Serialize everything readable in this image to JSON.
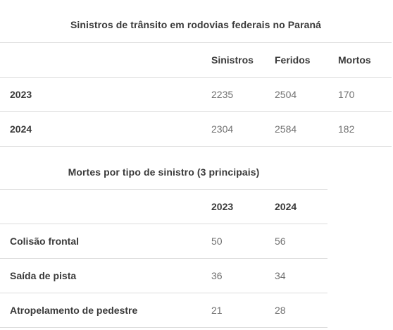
{
  "table1": {
    "caption": "Sinistros de trânsito em rodovias federais no Paraná",
    "headers": [
      "",
      "Sinistros",
      "Feridos",
      "Mortos"
    ],
    "rows": [
      {
        "label": "2023",
        "values": [
          "2235",
          "2504",
          "170"
        ]
      },
      {
        "label": "2024",
        "values": [
          "2304",
          "2584",
          "182"
        ]
      }
    ]
  },
  "table2": {
    "caption": "Mortes por tipo de sinistro (3 principais)",
    "headers": [
      "",
      "2023",
      "2024"
    ],
    "rows": [
      {
        "label": "Colisão frontal",
        "values": [
          "50",
          "56"
        ]
      },
      {
        "label": "Saída de pista",
        "values": [
          "36",
          "34"
        ]
      },
      {
        "label": "Atropelamento de pedestre",
        "values": [
          "21",
          "28"
        ]
      }
    ]
  }
}
